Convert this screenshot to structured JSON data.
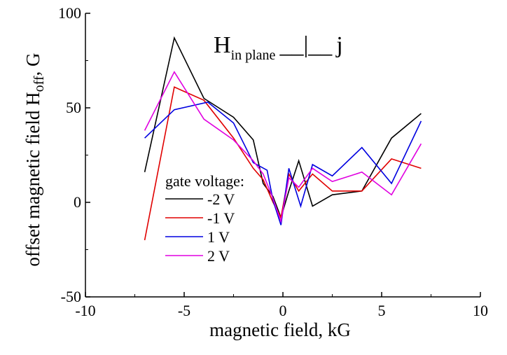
{
  "chart_data": {
    "type": "line",
    "title": "",
    "xlabel": "magnetic field, kG",
    "ylabel_parts": {
      "main": "offset magnetic field H",
      "sub": "off",
      "tail": ", G"
    },
    "xlim": [
      -10,
      10
    ],
    "ylim": [
      -50,
      100
    ],
    "x_ticks": [
      -10,
      -5,
      0,
      5,
      10
    ],
    "y_ticks": [
      -50,
      0,
      50,
      100
    ],
    "x_tick_labels": [
      "-10",
      "-5",
      "0",
      "5",
      "10"
    ],
    "y_tick_labels": [
      "-50",
      "0",
      "50",
      "100"
    ],
    "grid": false,
    "annotation": {
      "main": "H",
      "sub": "in plane",
      "symbol": "__|__",
      "tail": "j"
    },
    "legend": {
      "title": "gate voltage:",
      "placement": "lower-left"
    },
    "series": [
      {
        "name": "-2 V",
        "color": "#000000",
        "x": [
          -7.0,
          -5.5,
          -4.0,
          -2.5,
          -1.5,
          -1.0,
          -0.5,
          -0.1,
          0.3,
          0.8,
          1.5,
          2.5,
          4.0,
          5.5,
          7.0
        ],
        "y": [
          16,
          87,
          55,
          45,
          33,
          10,
          3,
          -8,
          6,
          22,
          -2,
          4,
          6,
          34,
          47
        ]
      },
      {
        "name": "-1 V",
        "color": "#e00000",
        "x": [
          -7.0,
          -5.5,
          -4.0,
          -2.5,
          -1.5,
          -1.0,
          -0.5,
          -0.1,
          0.3,
          0.8,
          1.5,
          2.5,
          4.0,
          5.5,
          7.0
        ],
        "y": [
          -20,
          61,
          54,
          34,
          18,
          12,
          0,
          -8,
          15,
          6,
          15,
          6,
          6,
          23,
          18
        ]
      },
      {
        "name": "1 V",
        "color": "#0000e0",
        "x": [
          -7.0,
          -5.5,
          -3.8,
          -2.5,
          -1.5,
          -0.8,
          -0.5,
          -0.1,
          0.3,
          0.9,
          1.5,
          2.5,
          4.0,
          5.5,
          7.0
        ],
        "y": [
          34,
          49,
          53,
          42,
          21,
          17,
          1,
          -12,
          18,
          -2,
          20,
          14,
          29,
          10,
          43
        ]
      },
      {
        "name": "2 V",
        "color": "#e000e0",
        "x": [
          -7.0,
          -5.5,
          -4.0,
          -2.5,
          -1.5,
          -1.0,
          -0.5,
          -0.1,
          0.3,
          0.8,
          1.5,
          2.5,
          4.0,
          5.5,
          7.0
        ],
        "y": [
          38,
          69,
          44,
          33,
          22,
          15,
          2,
          -10,
          13,
          8,
          18,
          11,
          16,
          4,
          31
        ]
      }
    ]
  }
}
